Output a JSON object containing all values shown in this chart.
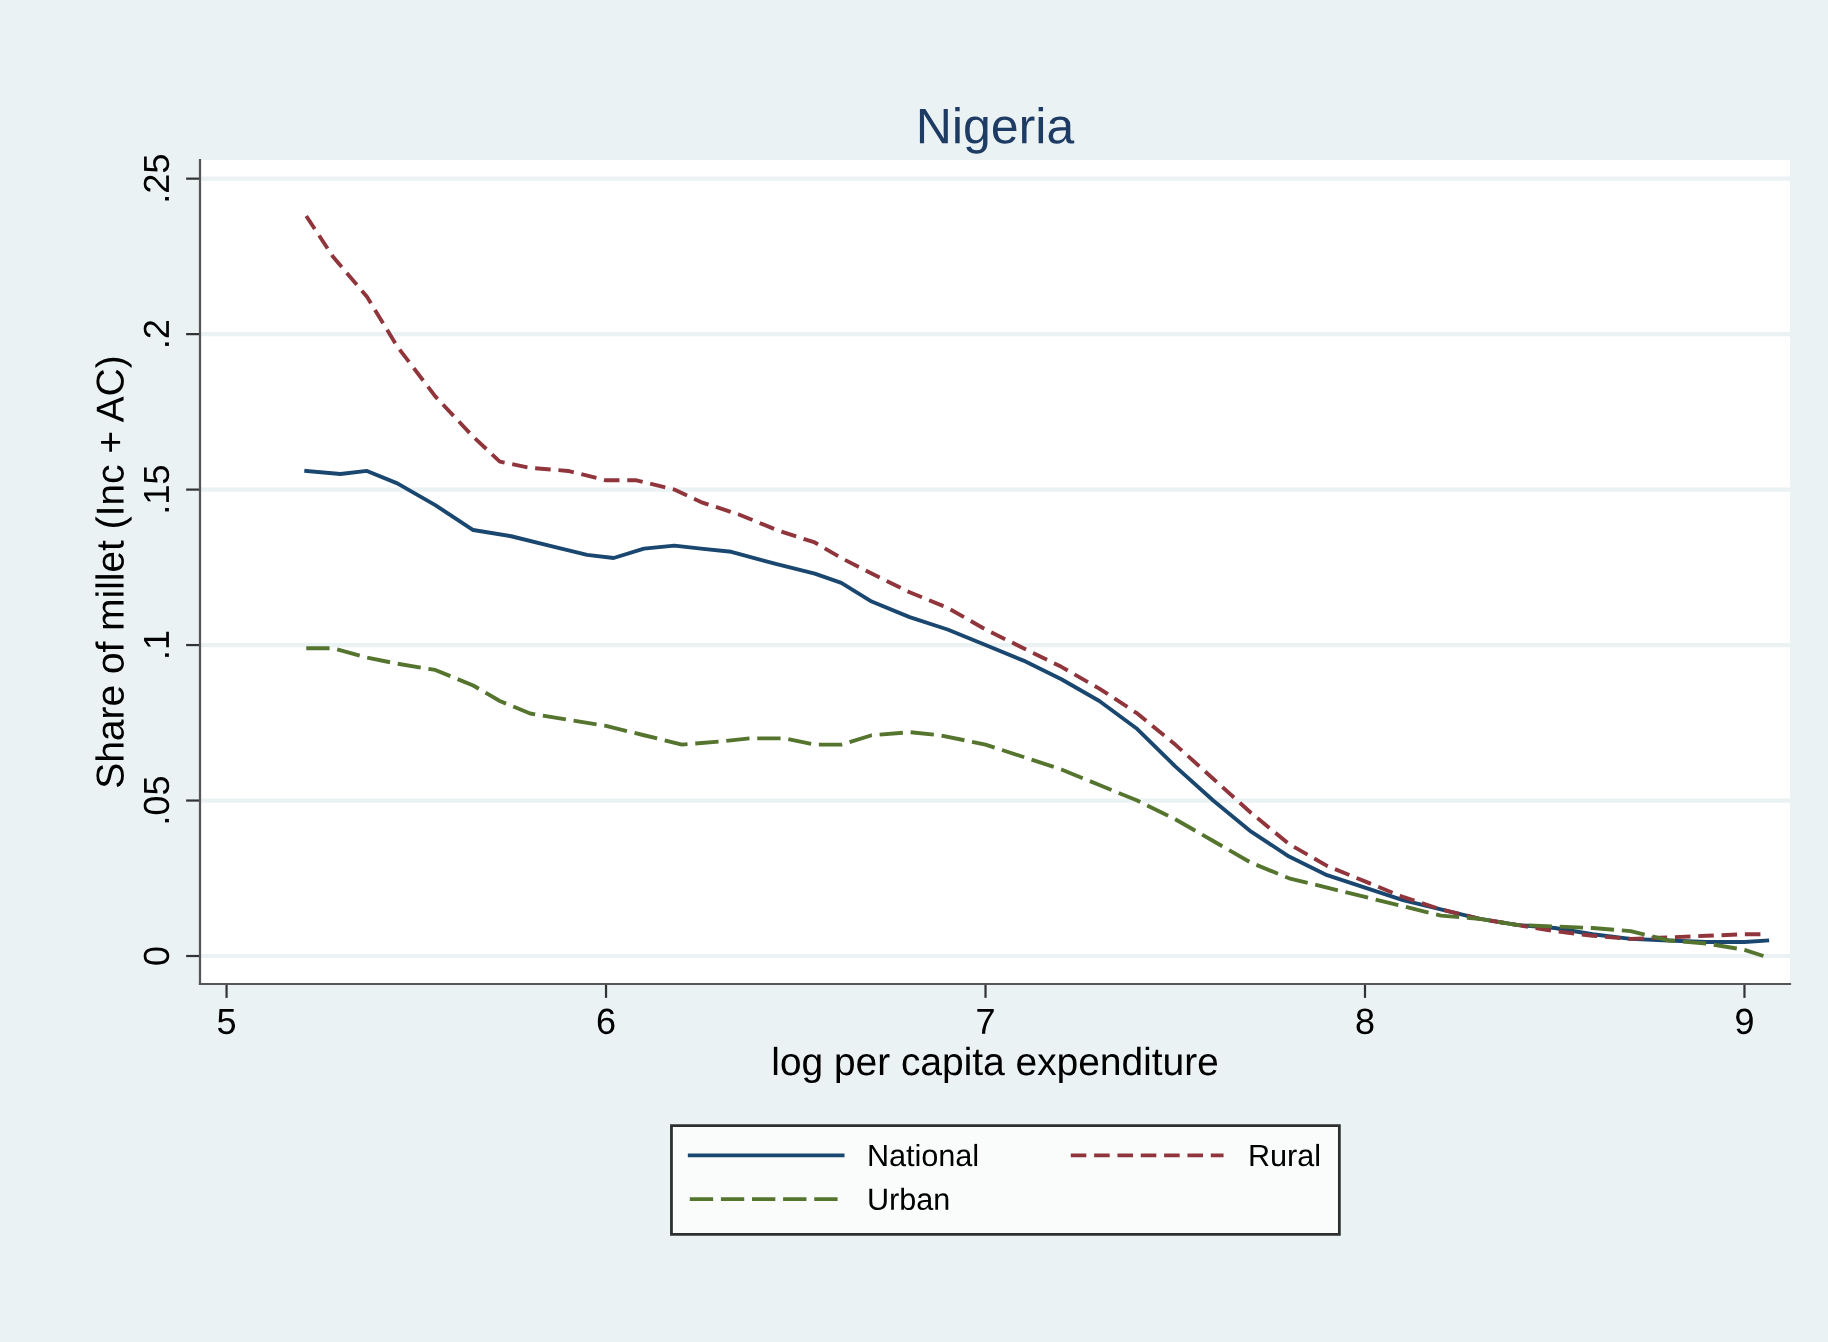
{
  "chart_data": {
    "type": "line",
    "title": "Nigeria",
    "xlabel": "log per capita expenditure",
    "ylabel": "Share of millet (Inc + AC)",
    "xlim": [
      4.93,
      9.12
    ],
    "ylim": [
      -0.009,
      0.256
    ],
    "xticks": [
      5,
      6,
      7,
      8,
      9
    ],
    "yticks": [
      {
        "value": 0,
        "label": "0"
      },
      {
        "value": 0.05,
        "label": ".05"
      },
      {
        "value": 0.1,
        "label": ".1"
      },
      {
        "value": 0.15,
        "label": ".15"
      },
      {
        "value": 0.2,
        "label": ".2"
      },
      {
        "value": 0.25,
        "label": ".25"
      }
    ],
    "grid": "y",
    "legend": "bottom",
    "marker": "none",
    "series": [
      {
        "name": "National",
        "color": "#1a476f",
        "line_style": "solid",
        "x": [
          5.21,
          5.3,
          5.37,
          5.45,
          5.55,
          5.65,
          5.75,
          5.85,
          5.95,
          6.02,
          6.1,
          6.18,
          6.25,
          6.33,
          6.45,
          6.55,
          6.62,
          6.7,
          6.8,
          6.9,
          7.0,
          7.1,
          7.2,
          7.3,
          7.4,
          7.5,
          7.6,
          7.7,
          7.8,
          7.9,
          8.0,
          8.1,
          8.2,
          8.3,
          8.4,
          8.5,
          8.6,
          8.7,
          8.8,
          8.9,
          9.0,
          9.06
        ],
        "values": [
          0.156,
          0.155,
          0.156,
          0.152,
          0.145,
          0.137,
          0.135,
          0.132,
          0.129,
          0.128,
          0.131,
          0.132,
          0.131,
          0.13,
          0.126,
          0.123,
          0.12,
          0.114,
          0.109,
          0.105,
          0.1,
          0.095,
          0.089,
          0.082,
          0.073,
          0.061,
          0.05,
          0.04,
          0.032,
          0.026,
          0.022,
          0.018,
          0.015,
          0.012,
          0.01,
          0.009,
          0.007,
          0.0055,
          0.005,
          0.0045,
          0.0045,
          0.005
        ]
      },
      {
        "name": "Rural",
        "color": "#90353b",
        "line_style": "dashed",
        "x": [
          5.21,
          5.28,
          5.37,
          5.45,
          5.55,
          5.65,
          5.72,
          5.8,
          5.9,
          6.0,
          6.08,
          6.18,
          6.25,
          6.35,
          6.45,
          6.55,
          6.62,
          6.7,
          6.8,
          6.9,
          7.0,
          7.1,
          7.2,
          7.3,
          7.4,
          7.5,
          7.6,
          7.7,
          7.8,
          7.9,
          8.0,
          8.1,
          8.2,
          8.3,
          8.4,
          8.5,
          8.6,
          8.7,
          8.8,
          8.9,
          9.0,
          9.06
        ],
        "values": [
          0.238,
          0.225,
          0.212,
          0.196,
          0.18,
          0.167,
          0.159,
          0.157,
          0.156,
          0.153,
          0.153,
          0.15,
          0.146,
          0.142,
          0.137,
          0.133,
          0.128,
          0.123,
          0.117,
          0.112,
          0.105,
          0.099,
          0.093,
          0.086,
          0.078,
          0.068,
          0.057,
          0.046,
          0.036,
          0.029,
          0.024,
          0.019,
          0.015,
          0.012,
          0.01,
          0.008,
          0.0065,
          0.0055,
          0.006,
          0.0065,
          0.007,
          0.007
        ]
      },
      {
        "name": "Urban",
        "color": "#55752f",
        "line_style": "dashed",
        "x": [
          5.21,
          5.28,
          5.37,
          5.45,
          5.55,
          5.65,
          5.72,
          5.8,
          5.9,
          6.0,
          6.1,
          6.2,
          6.3,
          6.38,
          6.47,
          6.55,
          6.62,
          6.7,
          6.8,
          6.88,
          7.0,
          7.1,
          7.2,
          7.3,
          7.4,
          7.5,
          7.6,
          7.7,
          7.8,
          7.9,
          8.0,
          8.1,
          8.2,
          8.3,
          8.4,
          8.5,
          8.6,
          8.7,
          8.8,
          8.9,
          9.0,
          9.05
        ],
        "values": [
          0.099,
          0.099,
          0.096,
          0.094,
          0.092,
          0.087,
          0.082,
          0.078,
          0.076,
          0.074,
          0.071,
          0.068,
          0.069,
          0.07,
          0.07,
          0.068,
          0.068,
          0.071,
          0.072,
          0.071,
          0.068,
          0.064,
          0.06,
          0.055,
          0.05,
          0.044,
          0.037,
          0.03,
          0.025,
          0.022,
          0.019,
          0.016,
          0.013,
          0.012,
          0.01,
          0.0095,
          0.009,
          0.008,
          0.005,
          0.004,
          0.002,
          0.0
        ]
      }
    ]
  }
}
